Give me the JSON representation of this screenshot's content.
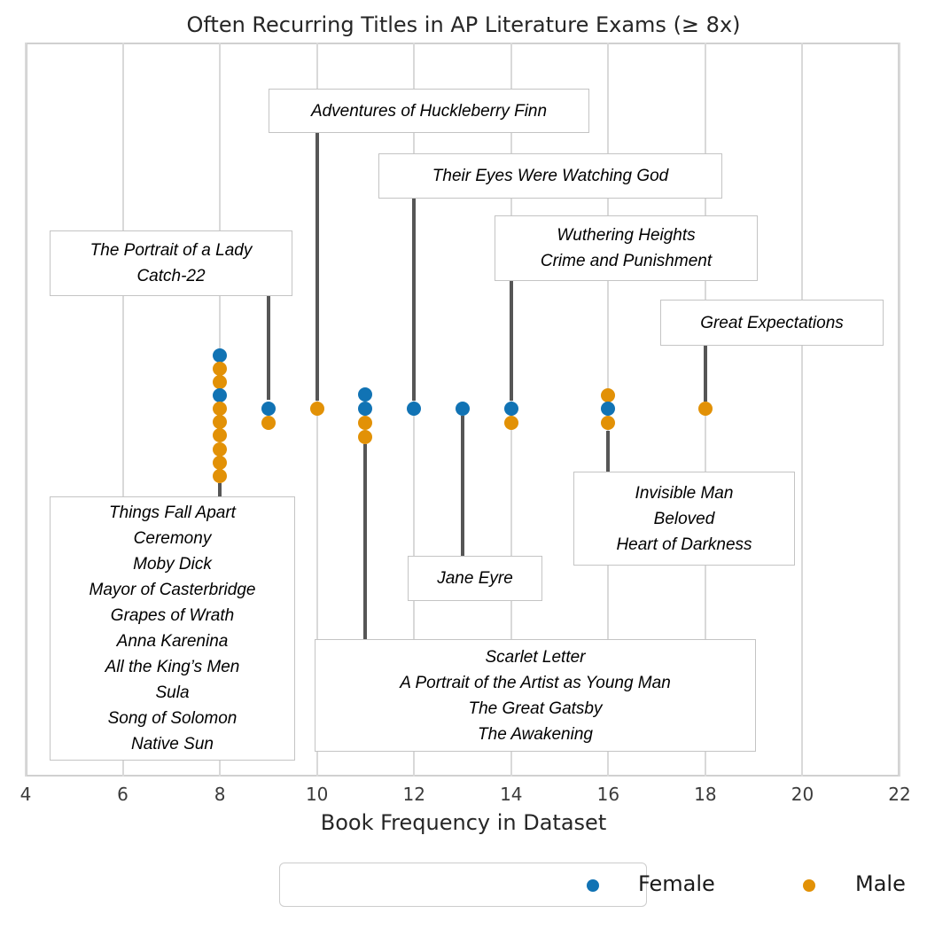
{
  "title": "Often Recurring Titles in AP Literature Exams (≥ 8x)",
  "x_axis_label": "Book Frequency in Dataset",
  "legend": {
    "items": [
      {
        "label": "Female",
        "color": "#1173b4"
      },
      {
        "label": "Male",
        "color": "#e29106"
      }
    ]
  },
  "chart_data": {
    "type": "scatter",
    "title": "Often Recurring Titles in AP Literature Exams (≥ 8x)",
    "xlabel": "Book Frequency in Dataset",
    "xlim": [
      4,
      22
    ],
    "x_ticks": [
      4,
      6,
      8,
      10,
      12,
      14,
      16,
      18,
      20,
      22
    ],
    "grid": "vertical-only",
    "legend_position": "bottom-center",
    "series": [
      {
        "name": "Female",
        "color": "#1173b4"
      },
      {
        "name": "Male",
        "color": "#e29106"
      }
    ],
    "columns": [
      {
        "frequency": 8,
        "dots": [
          "Female",
          "Male",
          "Male",
          "Female",
          "Male",
          "Male",
          "Male",
          "Male",
          "Male",
          "Male"
        ],
        "titles": [
          "Things Fall Apart",
          "Ceremony",
          "Moby Dick",
          "Mayor of Casterbridge",
          "Grapes of Wrath",
          "Anna Karenina",
          "All the King’s Men",
          "Sula",
          "Song of Solomon",
          "Native Sun"
        ],
        "label_position": "below"
      },
      {
        "frequency": 9,
        "dots": [
          "Female",
          "Male"
        ],
        "titles": [
          "The Portrait of a Lady",
          "Catch-22"
        ],
        "label_position": "above"
      },
      {
        "frequency": 10,
        "dots": [
          "Male"
        ],
        "titles": [
          "Adventures of Huckleberry Finn"
        ],
        "label_position": "above"
      },
      {
        "frequency": 11,
        "dots": [
          "Female",
          "Female",
          "Male",
          "Male"
        ],
        "titles": [
          "Scarlet Letter",
          "A Portrait of the Artist as Young Man",
          "The Great Gatsby",
          "The Awakening"
        ],
        "label_position": "below"
      },
      {
        "frequency": 12,
        "dots": [
          "Female"
        ],
        "titles": [
          "Their Eyes Were Watching God"
        ],
        "label_position": "above"
      },
      {
        "frequency": 13,
        "dots": [
          "Female"
        ],
        "titles": [
          "Jane Eyre"
        ],
        "label_position": "below"
      },
      {
        "frequency": 14,
        "dots": [
          "Female",
          "Male"
        ],
        "titles": [
          "Wuthering Heights",
          "Crime and Punishment"
        ],
        "label_position": "above"
      },
      {
        "frequency": 16,
        "dots": [
          "Male",
          "Female",
          "Male"
        ],
        "titles": [
          "Invisible Man",
          "Beloved",
          "Heart of Darkness"
        ],
        "label_position": "below"
      },
      {
        "frequency": 18,
        "dots": [
          "Male"
        ],
        "titles": [
          "Great Expectations"
        ],
        "label_position": "above"
      }
    ]
  }
}
